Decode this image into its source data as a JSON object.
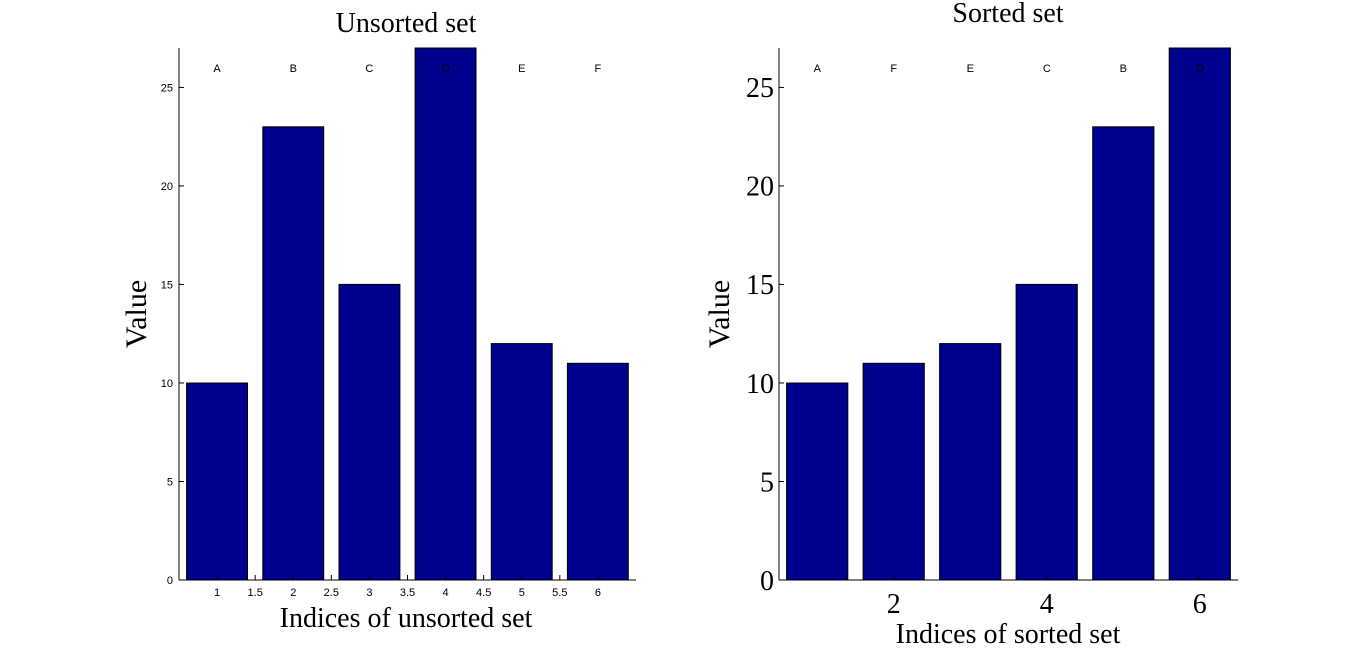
{
  "colors": {
    "bar": "#00008F",
    "axis": "#000000",
    "background": "#FFFFFF"
  },
  "chart_data": [
    {
      "type": "bar",
      "title": "Unsorted set",
      "xlabel": "Indices of unsorted set",
      "ylabel": "Value",
      "x": [
        1,
        2,
        3,
        4,
        5,
        6
      ],
      "values": [
        10,
        23,
        15,
        27,
        12,
        11
      ],
      "bar_labels": [
        "A",
        "B",
        "C",
        "D",
        "E",
        "F"
      ],
      "xlim": [
        0.5,
        6.5
      ],
      "ylim": [
        0,
        27
      ],
      "xticks": [
        1,
        1.5,
        2,
        2.5,
        3,
        3.5,
        4,
        4.5,
        5,
        5.5,
        6
      ],
      "xtick_labels": [
        "1",
        "1.5",
        "2",
        "2.5",
        "3",
        "3.5",
        "4",
        "4.5",
        "5",
        "5.5",
        "6"
      ],
      "yticks": [
        0,
        5,
        10,
        15,
        20,
        25
      ],
      "ytick_labels": [
        "0",
        "5",
        "10",
        "15",
        "20",
        "25"
      ],
      "tick_style": "small",
      "grid": false
    },
    {
      "type": "bar",
      "title": "Sorted set",
      "xlabel": "Indices of sorted set",
      "ylabel": "Value",
      "x": [
        1,
        2,
        3,
        4,
        5,
        6
      ],
      "values": [
        10,
        11,
        12,
        15,
        23,
        27
      ],
      "bar_labels": [
        "A",
        "F",
        "E",
        "C",
        "B",
        "D"
      ],
      "xlim": [
        0.5,
        6.5
      ],
      "ylim": [
        0,
        27
      ],
      "xticks": [
        2,
        4,
        6
      ],
      "xtick_labels": [
        "2",
        "4",
        "6"
      ],
      "yticks": [
        0,
        5,
        10,
        15,
        20,
        25
      ],
      "ytick_labels": [
        "0",
        "5",
        "10",
        "15",
        "20",
        "25"
      ],
      "tick_style": "large",
      "grid": false
    }
  ]
}
